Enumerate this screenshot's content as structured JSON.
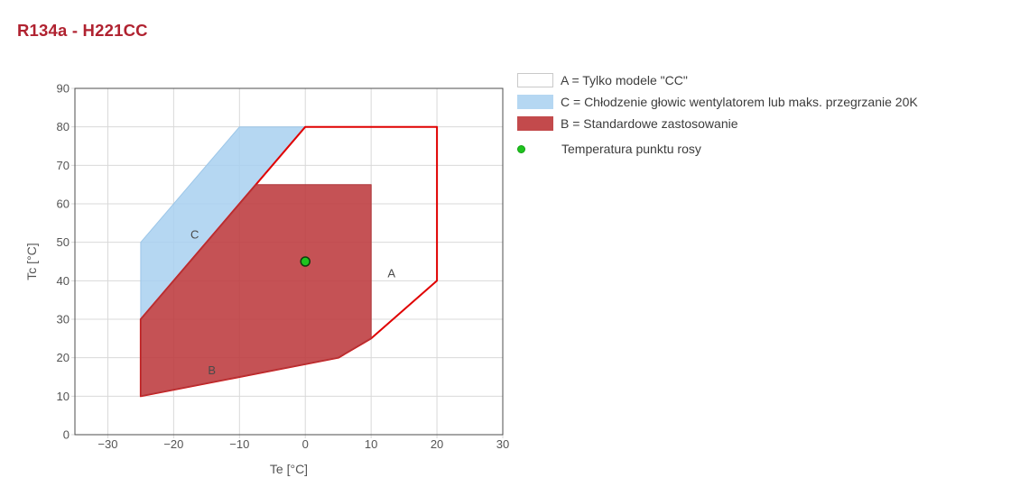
{
  "page": {
    "title": "R134a - H221CC",
    "title_color": "#b02230"
  },
  "legend": {
    "items": [
      {
        "type": "swatch",
        "color": "#ffffff",
        "border": "#c9c9c9",
        "label": "A = Tylko modele \"CC\""
      },
      {
        "type": "swatch",
        "color": "#b5d7f2",
        "border": "#b5d7f2",
        "label": "C = Chłodzenie głowic wentylatorem lub maks. przegrzanie 20K"
      },
      {
        "type": "swatch",
        "color": "#c34a4c",
        "border": "#c34a4c",
        "label": "B = Standardowe zastosowanie"
      },
      {
        "type": "dot",
        "color": "#1ec41e",
        "border": "#12a012",
        "label": "Temperatura punktu rosy"
      }
    ]
  },
  "chart_data": {
    "type": "area",
    "title": "R134a - H221CC",
    "xlabel": "Te [°C]",
    "ylabel": "Tc [°C]",
    "xlim": [
      -35,
      30
    ],
    "ylim": [
      0,
      90
    ],
    "xticks": [
      -30,
      -20,
      -10,
      0,
      10,
      20,
      30
    ],
    "yticks": [
      0,
      10,
      20,
      30,
      40,
      50,
      60,
      70,
      80,
      90
    ],
    "grid": true,
    "legend_position": "top-right",
    "colors": {
      "grid": "#d9d9d9",
      "frame": "#4d4d4d",
      "tick_text": "#545454",
      "axis_title": "#545454",
      "region_label": "#4a4a4a"
    },
    "regions": [
      {
        "id": "C",
        "label": "C",
        "meaning": "Chłodzenie głowic wentylatorem lub maks. przegrzanie 20K",
        "points": [
          [
            -25,
            50
          ],
          [
            -10,
            80
          ],
          [
            0,
            80
          ],
          [
            -25,
            30
          ]
        ],
        "fill": "#a8d0f0",
        "fill_opacity": 0.85,
        "stroke": "#9cc6e8",
        "stroke_width": 1,
        "label_pos": [
          -16.8,
          52
        ]
      },
      {
        "id": "A",
        "label": "A",
        "meaning": "Tylko modele \"CC\"",
        "points": [
          [
            -25,
            30
          ],
          [
            0,
            80
          ],
          [
            20,
            80
          ],
          [
            20,
            40
          ],
          [
            10,
            25
          ],
          [
            5,
            20
          ],
          [
            -25,
            10
          ]
        ],
        "fill": "none",
        "fill_opacity": 0,
        "stroke": "#e00000",
        "stroke_width": 2,
        "label_pos": [
          13.1,
          42
        ]
      },
      {
        "id": "B",
        "label": "B",
        "meaning": "Standardowe zastosowanie",
        "points": [
          [
            -25,
            30
          ],
          [
            -7.5,
            65
          ],
          [
            10,
            65
          ],
          [
            10,
            25
          ],
          [
            5,
            20
          ],
          [
            -25,
            10
          ]
        ],
        "fill": "#bd3a3d",
        "fill_opacity": 0.88,
        "stroke": "#ae3639",
        "stroke_width": 1,
        "label_pos": [
          -14.2,
          16.8
        ]
      }
    ],
    "point": {
      "x": 0,
      "y": 45,
      "label": "Temperatura punktu rosy",
      "color": "#1ec41e",
      "border": "#0f3d0f",
      "radius": 5
    }
  }
}
